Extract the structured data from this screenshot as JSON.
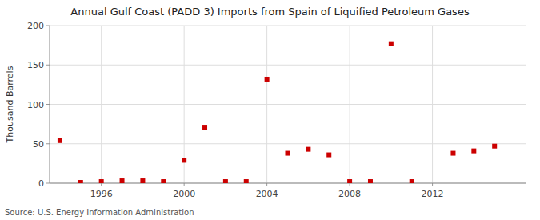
{
  "chart_data": {
    "type": "scatter",
    "title": "Annual Gulf Coast (PADD 3) Imports from Spain of Liquified Petroleum Gases",
    "ylabel": "Thousand Barrels",
    "annotation": "Source: U.S. Energy Information Administration",
    "x": [
      1994,
      1995,
      1996,
      1997,
      1998,
      1999,
      2000,
      2001,
      2002,
      2003,
      2004,
      2005,
      2006,
      2007,
      2008,
      2009,
      2010,
      2011,
      2013,
      2014,
      2015
    ],
    "values": [
      54,
      1,
      2,
      3,
      3,
      2,
      29,
      71,
      2,
      2,
      132,
      38,
      43,
      36,
      2,
      2,
      177,
      2,
      38,
      41,
      47
    ],
    "color": "#cc0000",
    "marker": "square",
    "xlim": [
      1993.5,
      2016.5
    ],
    "ylim": [
      0,
      200
    ],
    "xticks": [
      1996,
      2000,
      2004,
      2008,
      2012
    ],
    "yticks": [
      0,
      50,
      100,
      150,
      200
    ],
    "grid": true
  }
}
